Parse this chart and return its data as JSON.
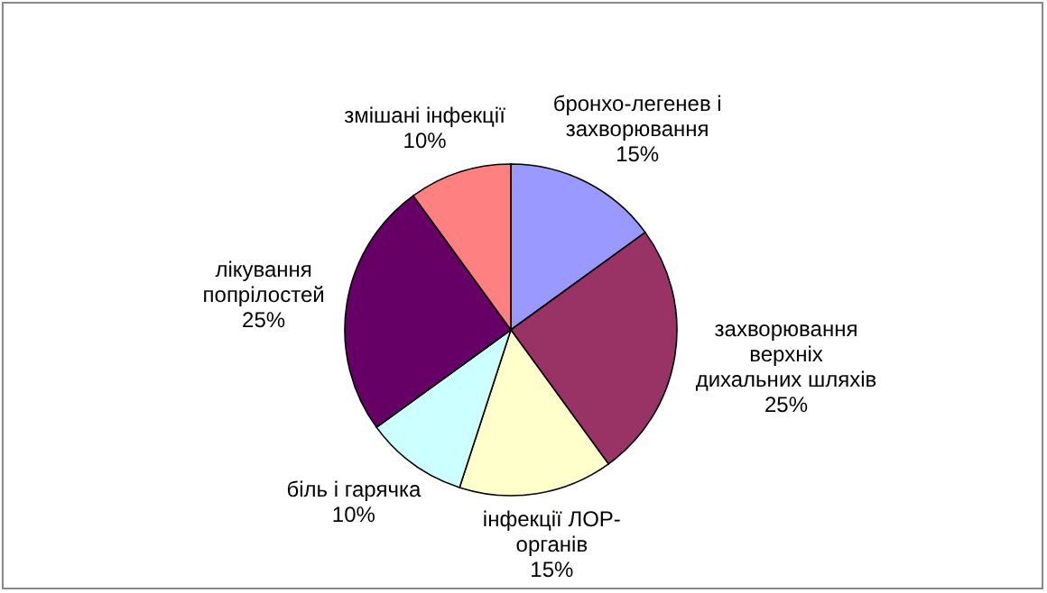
{
  "chart_data": {
    "type": "pie",
    "categories": [
      "бронхо-легенев і\nзахворювання",
      "захворювання\nверхніх\nдихальних шляхів",
      "інфекції ЛОР-\nорганів",
      "біль і гарячка",
      "лікування\nпопрілостей",
      "змішані інфекції"
    ],
    "values": [
      15,
      25,
      15,
      10,
      25,
      10
    ],
    "value_labels": [
      "15%",
      "25%",
      "15%",
      "10%",
      "25%",
      "10%"
    ],
    "colors": [
      "#9999ff",
      "#993366",
      "#ffffcc",
      "#ccffff",
      "#660066",
      "#ff8080"
    ],
    "legend": false
  }
}
